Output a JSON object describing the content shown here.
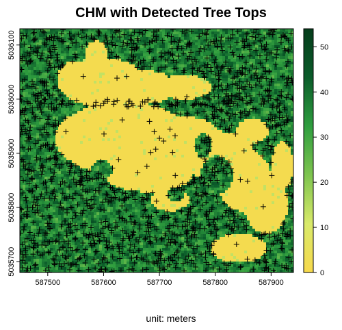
{
  "chart_data": {
    "type": "heatmap",
    "title": "CHM with Detected Tree Tops",
    "caption": "unit: meters",
    "xlim": [
      587450,
      587940
    ],
    "ylim": [
      5035680,
      5036130
    ],
    "x_ticks": [
      "587500",
      "587600",
      "587700",
      "587800",
      "587900"
    ],
    "y_ticks": [
      "5035700",
      "5035800",
      "5035900",
      "5036000",
      "5036100"
    ],
    "colorbar": {
      "range": [
        0,
        54
      ],
      "ticks": [
        "0",
        "10",
        "20",
        "30",
        "40",
        "50"
      ],
      "colors": [
        "#f7d94c",
        "#d9ea6a",
        "#7ec44f",
        "#2f9e3f",
        "#0b5c2a",
        "#053d1b"
      ]
    },
    "series": [
      {
        "type": "raster",
        "description": "canopy height model"
      },
      {
        "type": "points",
        "marker": "+"
      }
    ]
  }
}
